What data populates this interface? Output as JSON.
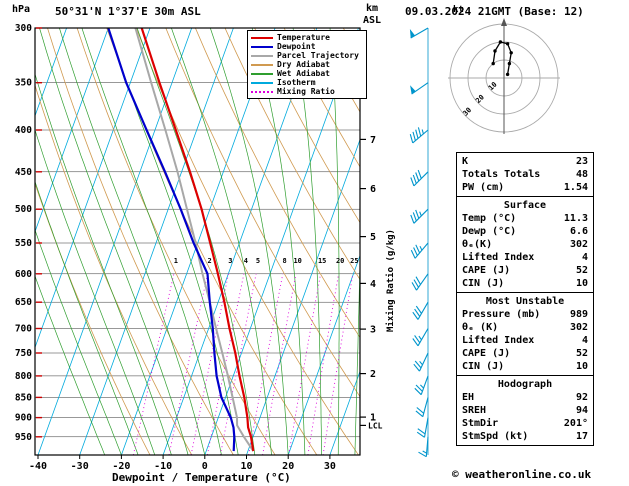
{
  "header": {
    "pressure_unit": "hPa",
    "station": "50°31'N 1°37'E 30m ASL",
    "datetime": "09.03.2024 21GMT (Base: 12)",
    "altitude_unit_km": "km",
    "altitude_unit_asl": "ASL"
  },
  "footer": {
    "copyright": "© weatheronline.co.uk"
  },
  "axes": {
    "pressure_ticks": [
      300,
      350,
      400,
      450,
      500,
      550,
      600,
      650,
      700,
      750,
      800,
      850,
      900,
      950
    ],
    "temp_ticks": [
      -40,
      -30,
      -20,
      -10,
      0,
      10,
      20,
      30
    ],
    "xlabel": "Dewpoint / Temperature (°C)",
    "km_ticks": [
      1,
      2,
      3,
      4,
      5,
      6,
      7
    ],
    "lcl_label": "LCL",
    "mixing_ratio_axis_label": "Mixing Ratio (g/kg)",
    "mixing_ratio_values": [
      1,
      2,
      3,
      4,
      5,
      8,
      10,
      15,
      20,
      25
    ]
  },
  "colors": {
    "temperature": "#dd0000",
    "dewpoint": "#0000cc",
    "parcel": "#a8a8a8",
    "dry_adiabat": "#d09a50",
    "wet_adiabat": "#2f9e2f",
    "isotherm": "#00aadd",
    "mixing_ratio": "#dd00dd",
    "wind_barb": "#0095cc",
    "pressure_tick": "#cc0000",
    "hodograph_ring": "#aaaaaa",
    "grid": "#333333"
  },
  "legend": {
    "items": [
      {
        "label": "Temperature",
        "color_key": "temperature",
        "dashed": false
      },
      {
        "label": "Dewpoint",
        "color_key": "dewpoint",
        "dashed": false
      },
      {
        "label": "Parcel Trajectory",
        "color_key": "parcel",
        "dashed": false
      },
      {
        "label": "Dry Adiabat",
        "color_key": "dry_adiabat",
        "dashed": false
      },
      {
        "label": "Wet Adiabat",
        "color_key": "wet_adiabat",
        "dashed": false
      },
      {
        "label": "Isotherm",
        "color_key": "isotherm",
        "dashed": false
      },
      {
        "label": "Mixing Ratio",
        "color_key": "mixing_ratio",
        "dashed": true
      }
    ]
  },
  "hodograph": {
    "unit_label": "kt",
    "rings_kt": [
      10,
      20,
      30
    ]
  },
  "indices": {
    "sections": [
      {
        "title": null,
        "rows": [
          [
            "K",
            "23"
          ],
          [
            "Totals Totals",
            "48"
          ],
          [
            "PW (cm)",
            "1.54"
          ]
        ]
      },
      {
        "title": "Surface",
        "rows": [
          [
            "Temp (°C)",
            "11.3"
          ],
          [
            "Dewp (°C)",
            "6.6"
          ],
          [
            "θₑ(K)",
            "302"
          ],
          [
            "Lifted Index",
            "4"
          ],
          [
            "CAPE (J)",
            "52"
          ],
          [
            "CIN (J)",
            "10"
          ]
        ]
      },
      {
        "title": "Most Unstable",
        "rows": [
          [
            "Pressure (mb)",
            "989"
          ],
          [
            "θₑ (K)",
            "302"
          ],
          [
            "Lifted Index",
            "4"
          ],
          [
            "CAPE (J)",
            "52"
          ],
          [
            "CIN (J)",
            "10"
          ]
        ]
      },
      {
        "title": "Hodograph",
        "rows": [
          [
            "EH",
            "92"
          ],
          [
            "SREH",
            "94"
          ],
          [
            "StmDir",
            "201°"
          ],
          [
            "StmSpd (kt)",
            "17"
          ]
        ]
      }
    ]
  },
  "chart_data": {
    "type": "line",
    "title": "Skew-T log-P sounding 50°31'N 1°37'E 30m ASL 09.03.2024 21GMT",
    "x_axis": {
      "label": "Dewpoint / Temperature (°C)",
      "ticks": [
        -40,
        -30,
        -20,
        -10,
        0,
        10,
        20,
        30
      ]
    },
    "y_axis": {
      "label": "hPa",
      "scale": "log",
      "range_hpa": [
        300,
        1000
      ],
      "ticks": [
        300,
        350,
        400,
        450,
        500,
        550,
        600,
        650,
        700,
        750,
        800,
        850,
        900,
        950
      ]
    },
    "altitude_ticks_km": [
      1,
      2,
      3,
      4,
      5,
      6,
      7
    ],
    "lcl_pressure_hpa": 920,
    "temperature_profile_p_t": [
      [
        989,
        11.3
      ],
      [
        950,
        9.5
      ],
      [
        925,
        8
      ],
      [
        900,
        7
      ],
      [
        850,
        4.5
      ],
      [
        800,
        1.5
      ],
      [
        750,
        -1.5
      ],
      [
        700,
        -5
      ],
      [
        650,
        -8.5
      ],
      [
        600,
        -12.5
      ],
      [
        550,
        -17
      ],
      [
        500,
        -22
      ],
      [
        450,
        -28
      ],
      [
        400,
        -35
      ],
      [
        350,
        -43
      ],
      [
        300,
        -52
      ]
    ],
    "dewpoint_profile_p_t": [
      [
        989,
        6.6
      ],
      [
        950,
        5.5
      ],
      [
        925,
        4.5
      ],
      [
        900,
        3
      ],
      [
        850,
        -1
      ],
      [
        800,
        -4
      ],
      [
        750,
        -6.5
      ],
      [
        700,
        -9
      ],
      [
        650,
        -12
      ],
      [
        600,
        -15
      ],
      [
        550,
        -21
      ],
      [
        500,
        -27
      ],
      [
        450,
        -34
      ],
      [
        400,
        -42
      ],
      [
        350,
        -51
      ],
      [
        300,
        -60
      ]
    ],
    "parcel_profile_p_t": [
      [
        989,
        11.3
      ],
      [
        950,
        7.8
      ],
      [
        920,
        5.2
      ],
      [
        900,
        4.5
      ],
      [
        850,
        1.7
      ],
      [
        800,
        -1.3
      ],
      [
        750,
        -4.6
      ],
      [
        700,
        -8.2
      ],
      [
        650,
        -12
      ],
      [
        600,
        -16.2
      ],
      [
        550,
        -20.5
      ],
      [
        500,
        -25.5
      ],
      [
        450,
        -31
      ],
      [
        400,
        -37.5
      ],
      [
        350,
        -45
      ],
      [
        300,
        -53.5
      ]
    ],
    "wind_profile_p_dir_kt": [
      [
        950,
        185,
        15
      ],
      [
        900,
        190,
        20
      ],
      [
        850,
        195,
        20
      ],
      [
        800,
        200,
        25
      ],
      [
        750,
        205,
        25
      ],
      [
        700,
        210,
        25
      ],
      [
        650,
        210,
        30
      ],
      [
        600,
        215,
        30
      ],
      [
        550,
        220,
        35
      ],
      [
        500,
        225,
        35
      ],
      [
        450,
        225,
        40
      ],
      [
        400,
        230,
        45
      ],
      [
        350,
        235,
        50
      ],
      [
        300,
        240,
        50
      ]
    ],
    "hodograph_trace_uv_kt": [
      [
        2,
        2
      ],
      [
        3,
        8
      ],
      [
        4,
        14
      ],
      [
        2,
        19
      ],
      [
        -2,
        20
      ],
      [
        -5,
        15
      ],
      [
        -6,
        8
      ]
    ],
    "background": {
      "isotherm_step_c": 10,
      "dry_adiabat_step_k": 10,
      "wet_adiabat_start_c": [
        -24,
        -20,
        -16,
        -12,
        -8,
        -4,
        0,
        4,
        8,
        12,
        16,
        20,
        24,
        28,
        32,
        36
      ],
      "mixing_ratio_g_kg": [
        1,
        2,
        3,
        4,
        5,
        8,
        10,
        15,
        20,
        25
      ]
    }
  }
}
